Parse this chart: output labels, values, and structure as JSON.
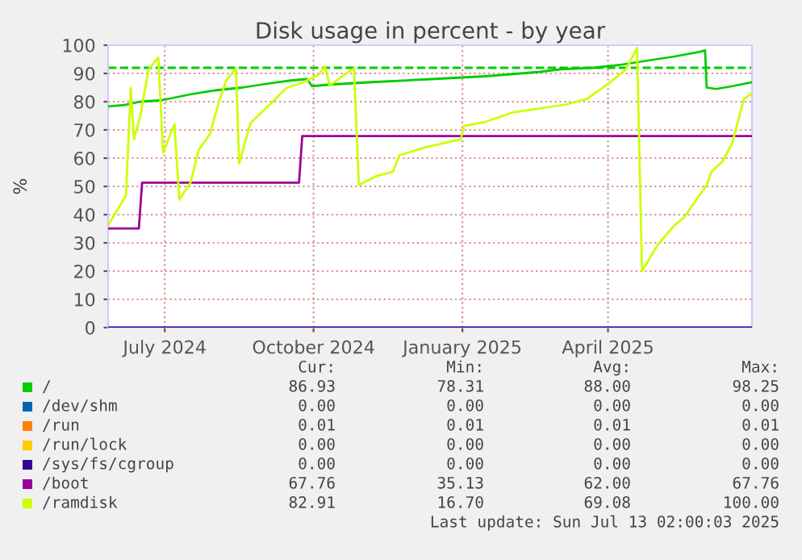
{
  "chart_data": {
    "type": "line",
    "title": "Disk usage in percent - by year",
    "ylabel": "%",
    "xlim": [
      "2024-06-10",
      "2025-07-13"
    ],
    "xticks": [
      {
        "value": "2024-07-15",
        "label": "July 2024"
      },
      {
        "value": "2024-10-15",
        "label": "October 2024"
      },
      {
        "value": "2025-01-15",
        "label": "January 2025"
      },
      {
        "value": "2025-04-15",
        "label": "April 2025"
      }
    ],
    "ylim": [
      0,
      100
    ],
    "yticks": [
      0,
      10,
      20,
      30,
      40,
      50,
      60,
      70,
      80,
      90,
      100
    ],
    "grid": true,
    "legend": "bottom",
    "marker": "none",
    "line_style": "solid",
    "ref_lines": [
      {
        "axis": "y",
        "value": 92,
        "label": null,
        "color": "#00cc00",
        "line_style": "dashed"
      }
    ],
    "series": [
      {
        "name": "/",
        "color": "#00cc00",
        "x": [
          "2024-06-10",
          "2024-06-20",
          "2024-06-30",
          "2024-07-13",
          "2024-07-30",
          "2024-08-15",
          "2024-09-01",
          "2024-09-18",
          "2024-10-01",
          "2024-10-11",
          "2024-10-14",
          "2024-10-24",
          "2024-11-07",
          "2024-11-23",
          "2024-12-27",
          "2025-01-29",
          "2025-03-03",
          "2025-03-17",
          "2025-04-06",
          "2025-04-22",
          "2025-05-09",
          "2025-05-26",
          "2025-06-11",
          "2025-06-14",
          "2025-06-15",
          "2025-06-21",
          "2025-07-01",
          "2025-07-13"
        ],
        "values": [
          78.3,
          78.8,
          80,
          80.5,
          82.5,
          84,
          85,
          86.5,
          87.5,
          88,
          85.5,
          86,
          86.5,
          87,
          88,
          89,
          90.5,
          91.5,
          92,
          93,
          94.5,
          96,
          97.7,
          98.2,
          85,
          84.5,
          85.5,
          86.9
        ]
      },
      {
        "name": "/dev/shm",
        "color": "#0066b3"
      },
      {
        "name": "/run",
        "color": "#ff8000"
      },
      {
        "name": "/run/lock",
        "color": "#ffcc00"
      },
      {
        "name": "/sys/fs/cgroup",
        "color": "#330099",
        "x": [
          "2024-06-10",
          "2025-07-13"
        ],
        "values": [
          0,
          0
        ]
      },
      {
        "name": "/boot",
        "color": "#990099",
        "x": [
          "2024-06-10",
          "2024-06-29",
          "2024-07-01",
          "2024-10-06",
          "2024-10-08",
          "2025-07-13"
        ],
        "values": [
          35.1,
          35.1,
          51.3,
          51.3,
          67.8,
          67.8
        ]
      },
      {
        "name": "/ramdisk",
        "color": "#ccff00",
        "x": [
          "2024-06-10",
          "2024-06-21",
          "2024-06-24",
          "2024-06-26",
          "2024-06-30",
          "2024-07-05",
          "2024-07-11",
          "2024-07-14",
          "2024-07-21",
          "2024-07-24",
          "2024-07-31",
          "2024-08-05",
          "2024-08-12",
          "2024-08-17",
          "2024-08-22",
          "2024-08-28",
          "2024-08-30",
          "2024-09-06",
          "2024-09-18",
          "2024-09-28",
          "2024-10-08",
          "2024-10-18",
          "2024-10-22",
          "2024-10-25",
          "2024-11-03",
          "2024-11-09",
          "2024-11-12",
          "2024-11-23",
          "2024-12-03",
          "2024-12-07",
          "2024-12-23",
          "2025-01-14",
          "2025-01-16",
          "2025-01-29",
          "2025-02-15",
          "2025-03-20",
          "2025-04-02",
          "2025-04-16",
          "2025-04-26",
          "2025-05-03",
          "2025-05-06",
          "2025-05-16",
          "2025-05-26",
          "2025-06-01",
          "2025-06-15",
          "2025-06-18",
          "2025-06-25",
          "2025-07-01",
          "2025-07-08",
          "2025-07-13"
        ],
        "values": [
          36.2,
          46.7,
          84.8,
          66.7,
          75.2,
          91.4,
          95.6,
          61.9,
          72,
          45.3,
          51.4,
          62.9,
          68.6,
          79,
          87.6,
          91.8,
          58.1,
          72.4,
          79,
          84.8,
          86.7,
          89.5,
          92.4,
          85.7,
          89.5,
          91.8,
          50.5,
          53.7,
          55.2,
          61,
          63.8,
          66.7,
          71.4,
          72.8,
          76.2,
          79,
          81,
          86.7,
          91.4,
          99,
          20,
          29.5,
          36.2,
          39,
          50.5,
          55.2,
          59,
          65.7,
          81,
          82.9
        ]
      }
    ],
    "annotations": [
      "Cur:",
      "Min:",
      "Avg:",
      "Max:",
      "86.93",
      "78.31",
      "88.00",
      "98.25",
      "0.00",
      "0.00",
      "0.00",
      "0.00",
      "0.01",
      "0.01",
      "0.01",
      "0.01",
      "0.00",
      "0.00",
      "0.00",
      "0.00",
      "0.00",
      "0.00",
      "0.00",
      "0.00",
      "67.76",
      "35.13",
      "62.00",
      "67.76",
      "82.91",
      "16.70",
      "69.08",
      "100.00",
      "Last update: Sun Jul 13 02:00:03 2025"
    ]
  }
}
